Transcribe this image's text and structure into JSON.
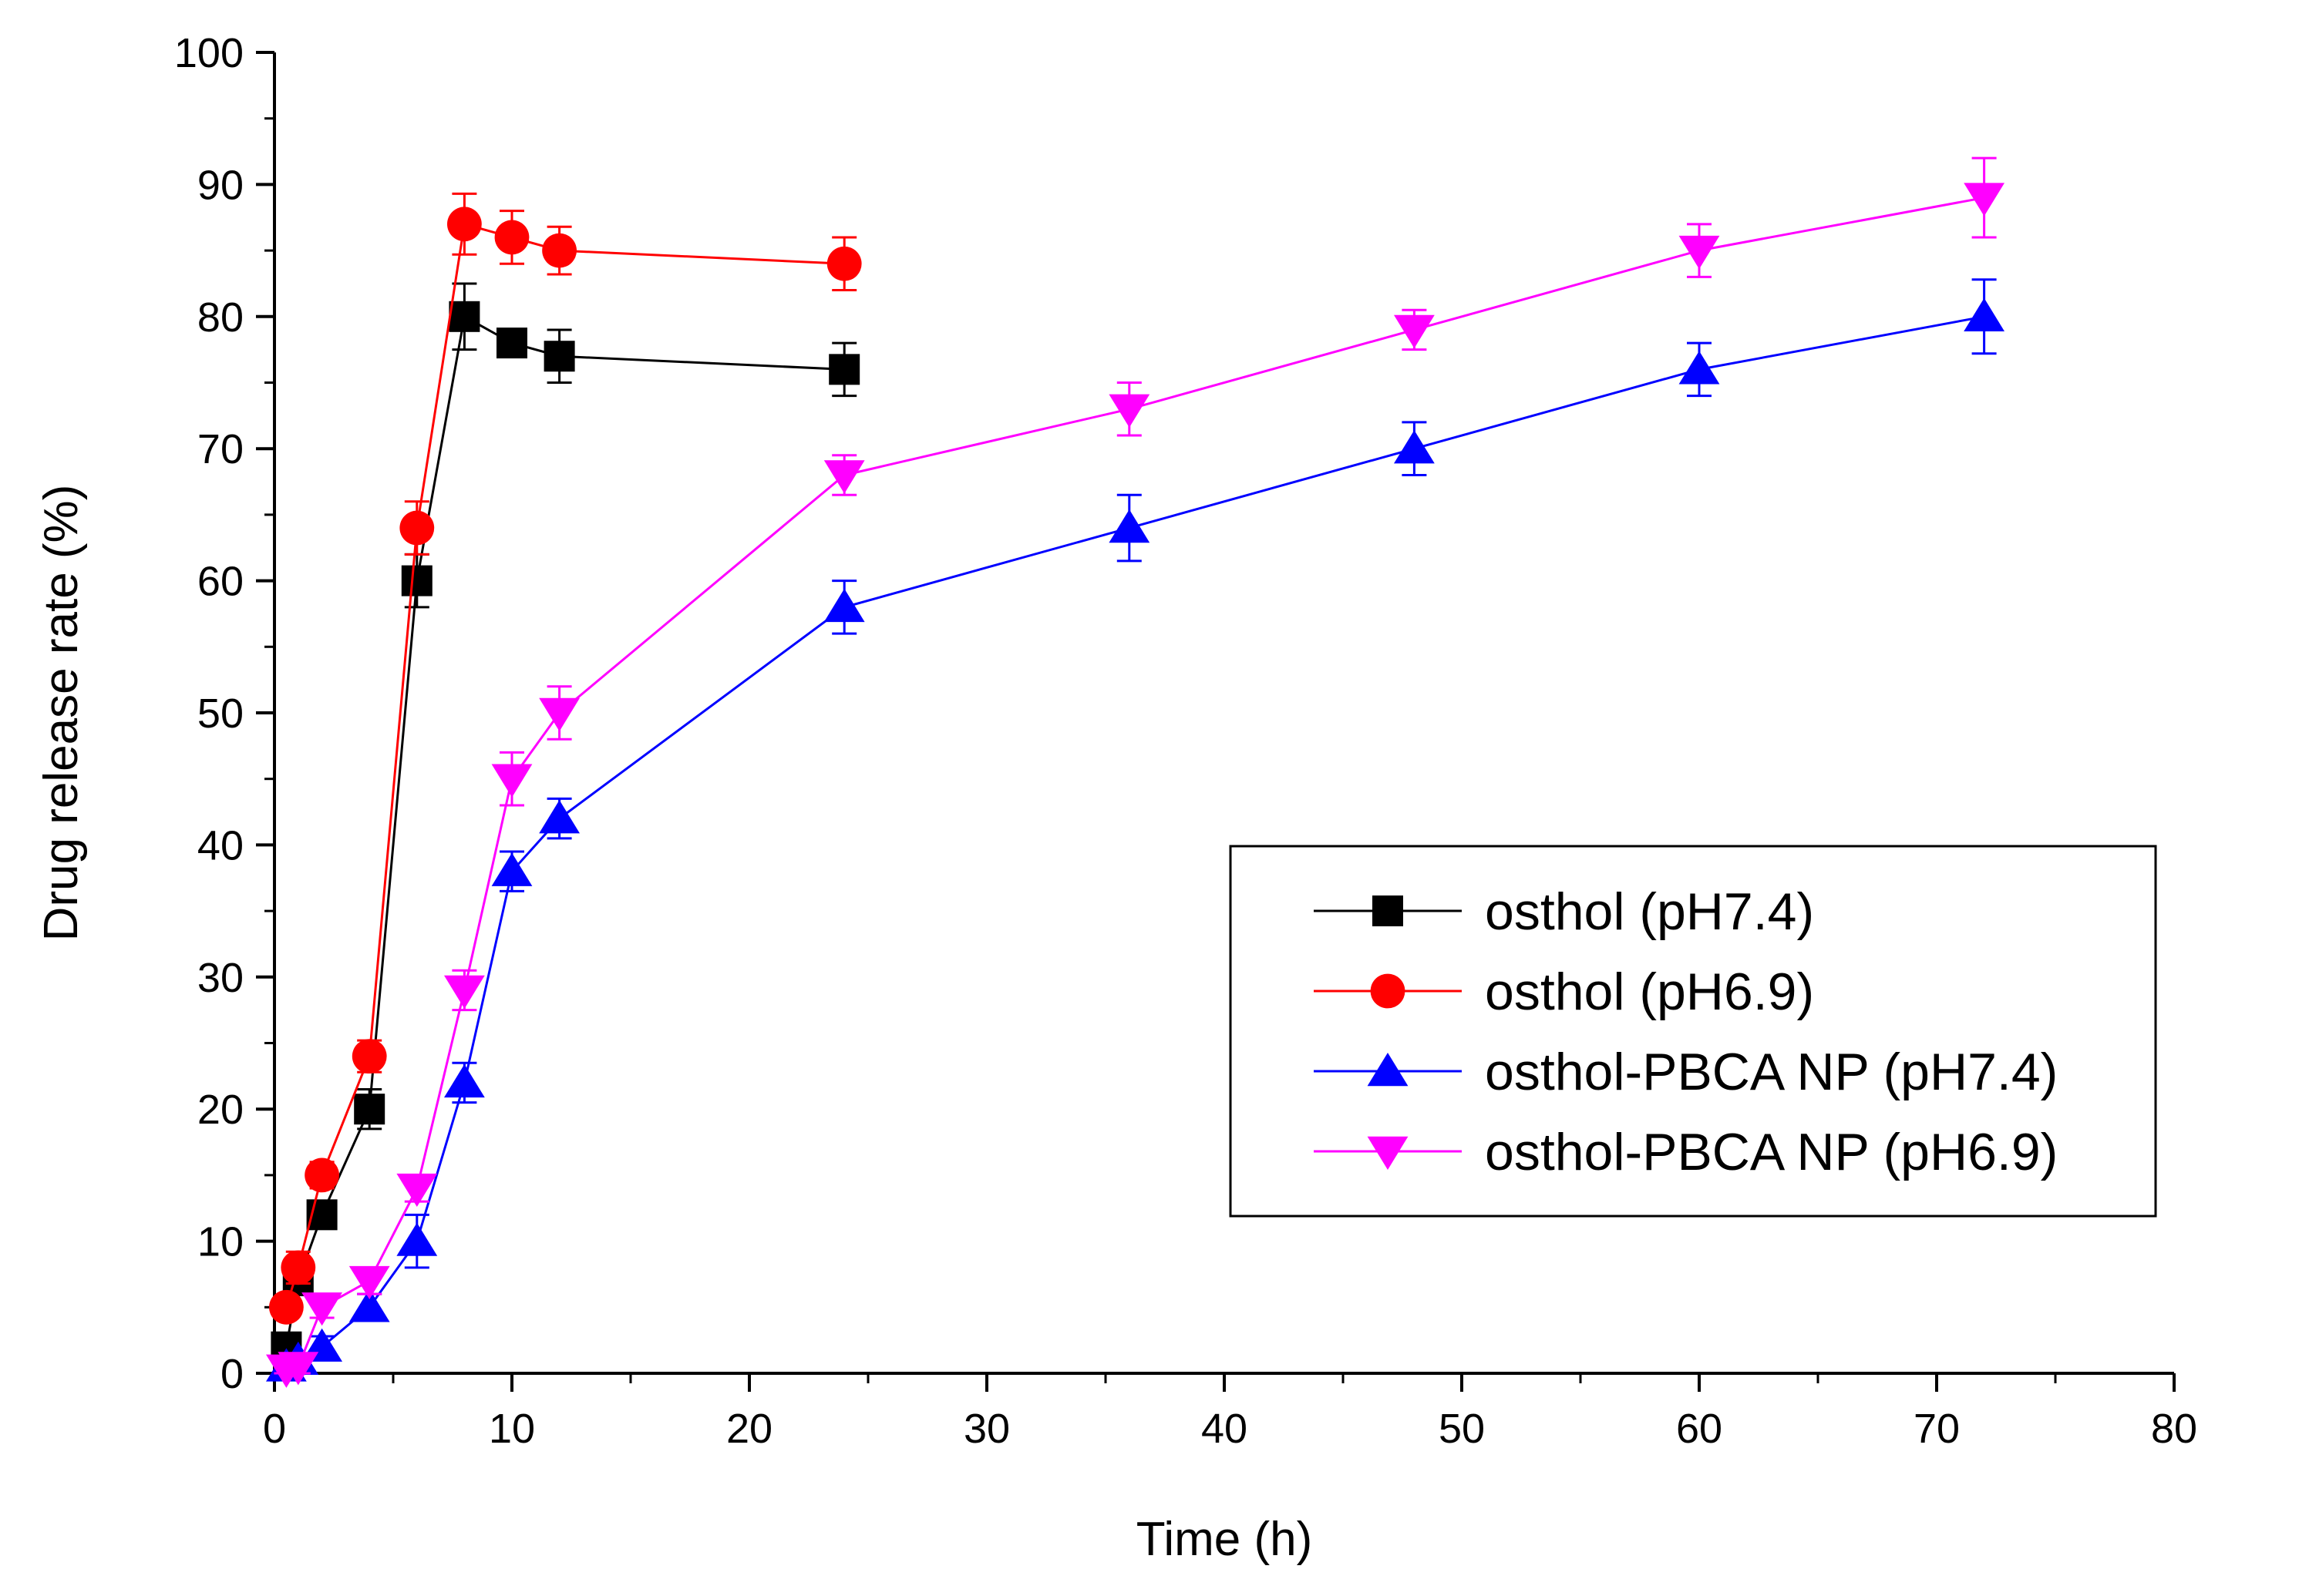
{
  "chart_data": {
    "type": "line",
    "title": "",
    "xlabel": "Time (h)",
    "ylabel": "Drug release rate (%)",
    "xlim": [
      0,
      80
    ],
    "ylim": [
      0,
      100
    ],
    "x_ticks": [
      0,
      10,
      20,
      30,
      40,
      50,
      60,
      70,
      80
    ],
    "y_ticks": [
      0,
      10,
      20,
      30,
      40,
      50,
      60,
      70,
      80,
      90,
      100
    ],
    "grid": false,
    "legend_position": "right",
    "series": [
      {
        "name": "osthol (pH7.4)",
        "color": "#000000",
        "marker": "square",
        "x": [
          0.5,
          1,
          2,
          4,
          6,
          8,
          10,
          12,
          24
        ],
        "y": [
          2,
          7,
          12,
          20,
          60,
          80,
          78,
          77,
          76
        ],
        "error": [
          0.5,
          1,
          0.8,
          1.5,
          2,
          2.5,
          0.8,
          2,
          2
        ]
      },
      {
        "name": "osthol (pH6.9)",
        "color": "#ff0000",
        "marker": "circle",
        "x": [
          0.5,
          1,
          2,
          4,
          6,
          8,
          10,
          12,
          24
        ],
        "y": [
          5,
          8,
          15,
          24,
          64,
          87,
          86,
          85,
          84
        ],
        "error": [
          0.8,
          1.2,
          1,
          1.2,
          2,
          2.3,
          2,
          1.8,
          2
        ]
      },
      {
        "name": "osthol-PBCA NP (pH7.4)",
        "color": "#0000ff",
        "marker": "triangle-up",
        "x": [
          0.5,
          1,
          2,
          4,
          6,
          8,
          10,
          12,
          24,
          36,
          48,
          60,
          72
        ],
        "y": [
          0.5,
          1,
          2,
          5,
          10,
          22,
          38,
          42,
          58,
          64,
          70,
          76,
          80
        ],
        "error": [
          0.3,
          0.5,
          0.8,
          1,
          2,
          1.5,
          1.5,
          1.5,
          2,
          2.5,
          2,
          2,
          2.8
        ]
      },
      {
        "name": "osthol-PBCA NP (pH6.9)",
        "color": "#ff00ff",
        "marker": "triangle-down",
        "x": [
          0.5,
          1,
          2,
          4,
          6,
          8,
          10,
          12,
          24,
          36,
          48,
          60,
          72
        ],
        "y": [
          0.3,
          0.5,
          5,
          7,
          14,
          29,
          45,
          50,
          68,
          73,
          79,
          85,
          89
        ],
        "error": [
          0.3,
          0.5,
          0.8,
          1,
          1,
          1.5,
          2,
          2,
          1.5,
          2,
          1.5,
          2,
          3
        ]
      }
    ]
  }
}
